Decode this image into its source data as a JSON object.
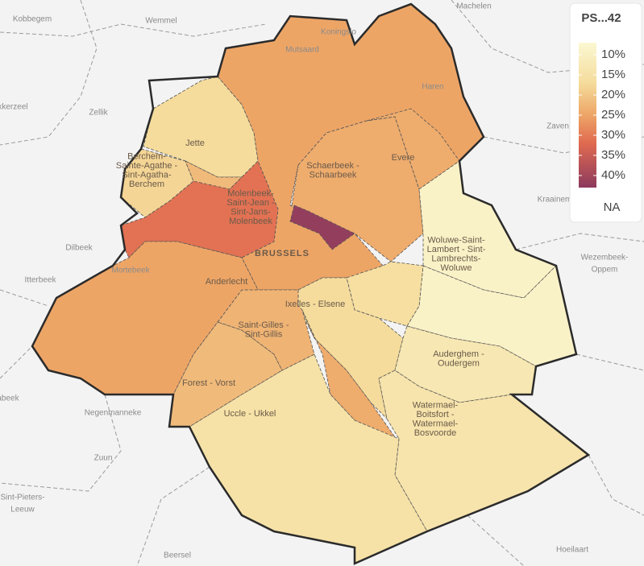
{
  "map": {
    "legend": {
      "title": "PS...42",
      "range": [
        7,
        43
      ],
      "ticks": [
        {
          "value": 10,
          "label": "10%"
        },
        {
          "value": 15,
          "label": "15%"
        },
        {
          "value": 20,
          "label": "20%"
        },
        {
          "value": 25,
          "label": "25%"
        },
        {
          "value": 30,
          "label": "30%"
        },
        {
          "value": 35,
          "label": "35%"
        },
        {
          "value": 40,
          "label": "40%"
        }
      ],
      "na_label": "NA",
      "stops": [
        {
          "value": 7,
          "color": "#fbf8d2"
        },
        {
          "value": 17,
          "color": "#f5dc9c"
        },
        {
          "value": 25,
          "color": "#eda566"
        },
        {
          "value": 32,
          "color": "#e06a50"
        },
        {
          "value": 43,
          "color": "#8c3a5e"
        }
      ]
    },
    "regions": [
      {
        "value": 25,
        "label": [
          "BRUSSELS"
        ]
      },
      {
        "value": 17,
        "label": [
          "Jette"
        ]
      },
      {
        "value": 18,
        "label": [
          "Berchem-",
          "Sainte-Agathe -",
          "Sint-Agatha-",
          "Berchem"
        ]
      },
      {
        "value": 22
      },
      {
        "value": 31,
        "label": [
          "Molenbeek-",
          "Saint-Jean -",
          "Sint-Jans-",
          "Molenbeek"
        ]
      },
      {
        "value": 24,
        "label": [
          "Schaerbeek -",
          "Schaarbeek"
        ]
      },
      {
        "value": 42
      },
      {
        "value": 24,
        "label": [
          "Evere"
        ]
      },
      {
        "value": 9,
        "label": [
          "Woluwe-Saint-",
          "Lambert - Sint-",
          "Lambrechts-",
          "Woluwe"
        ]
      },
      {
        "value": 9
      },
      {
        "value": 16
      },
      {
        "value": 17,
        "label": [
          "Ixelles - Elsene"
        ]
      },
      {
        "value": 24
      },
      {
        "value": 13,
        "label": [
          "Auderghem -",
          "Oudergem"
        ]
      },
      {
        "value": 14,
        "label": [
          "Watermael-",
          "Boitsfort -",
          "Watermael-",
          "Bosvoorde"
        ]
      },
      {
        "value": 15,
        "label": [
          "Uccle - Ukkel"
        ]
      },
      {
        "value": 22,
        "label": [
          "Forest - Vorst"
        ]
      },
      {
        "value": 23,
        "label": [
          "Saint-Gilles -",
          "Sint-Gillis"
        ]
      },
      {
        "value": 25,
        "label": [
          "Anderlecht"
        ]
      }
    ],
    "places": [
      [
        "Machelen"
      ],
      [
        "Kobbegem"
      ],
      [
        "Wemmel"
      ],
      [
        "Koningslo"
      ],
      [
        "Mutsaard"
      ],
      [
        "Haren"
      ],
      [
        "kkerzeel"
      ],
      [
        "Zellik"
      ],
      [
        "Zaven"
      ],
      [
        "Kraainem"
      ],
      [
        "Dilbeek"
      ],
      [
        "Mortebeek"
      ],
      [
        "Itterbeek"
      ],
      [
        "Wezembeek-",
        "Oppem"
      ],
      [
        "abeek"
      ],
      [
        "Negenmanneke"
      ],
      [
        "Zuun"
      ],
      [
        "Sint-Pieters-",
        "Leeuw"
      ],
      [
        "Beersel"
      ],
      [
        "Hoeilaart"
      ]
    ]
  }
}
